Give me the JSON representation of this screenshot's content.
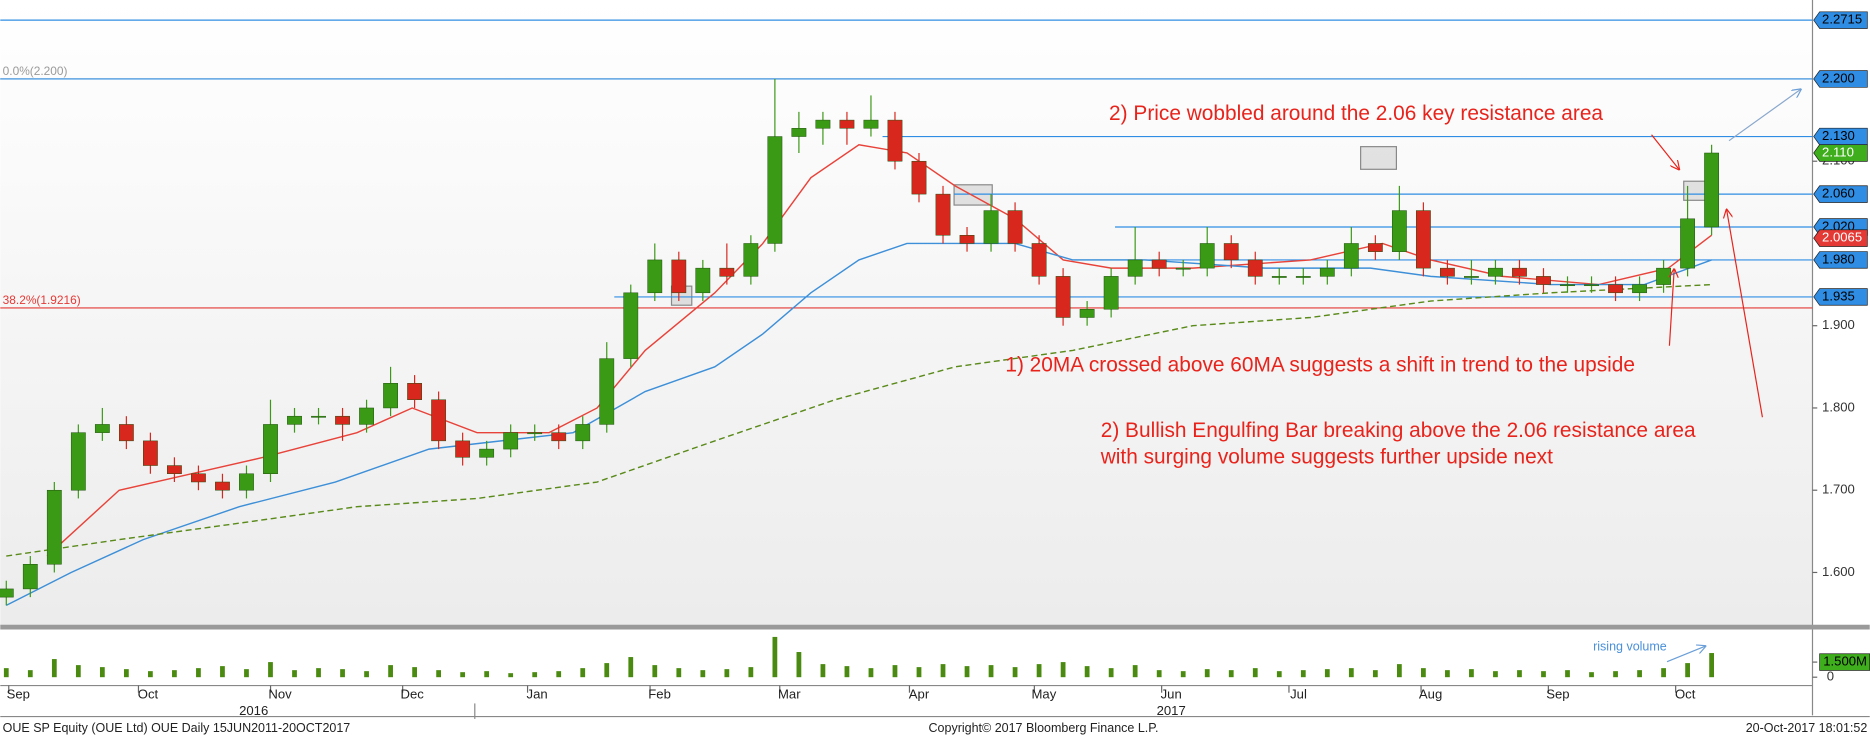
{
  "chart_data": {
    "type": "candlestick",
    "footer_left": "OUE SP Equity (OUE Ltd) OUE  Daily 15JUN2011-20OCT2017",
    "footer_center": "Copyright© 2017 Bloomberg Finance L.P.",
    "footer_right": "20-Oct-2017 18:01:52",
    "xlim": [
      -0.25,
      75.2
    ],
    "ylim": [
      1.535,
      2.296
    ],
    "xticks": [
      {
        "value": 0.5,
        "label": "Sep"
      },
      {
        "value": 5.9,
        "label": "Oct"
      },
      {
        "value": 11.4,
        "label": "Nov"
      },
      {
        "value": 16.9,
        "label": "Dec"
      },
      {
        "value": 22.1,
        "label": "Jan"
      },
      {
        "value": 27.2,
        "label": "Feb"
      },
      {
        "value": 32.6,
        "label": "Mar"
      },
      {
        "value": 38.0,
        "label": "Apr"
      },
      {
        "value": 43.2,
        "label": "May"
      },
      {
        "value": 48.5,
        "label": "Jun"
      },
      {
        "value": 53.8,
        "label": "Jul"
      },
      {
        "value": 59.3,
        "label": "Aug"
      },
      {
        "value": 64.6,
        "label": "Sep"
      },
      {
        "value": 69.9,
        "label": "Oct"
      }
    ],
    "year_ticks": [
      {
        "value": 10.3,
        "label": "2016"
      },
      {
        "value": 48.5,
        "label": "2017"
      }
    ],
    "yticks": [
      {
        "value": 1.6,
        "label": "1.600"
      },
      {
        "value": 1.7,
        "label": "1.700"
      },
      {
        "value": 1.8,
        "label": "1.800"
      },
      {
        "value": 1.9,
        "label": "1.900"
      },
      {
        "value": 2.1,
        "label": "2.100"
      }
    ],
    "up_color": "#3a9a16",
    "down_color": "#d8281e",
    "open": [
      1.57,
      1.58,
      1.61,
      1.7,
      1.77,
      1.78,
      1.76,
      1.73,
      1.72,
      1.71,
      1.7,
      1.72,
      1.78,
      1.79,
      1.79,
      1.78,
      1.8,
      1.83,
      1.81,
      1.76,
      1.74,
      1.75,
      1.77,
      1.77,
      1.76,
      1.78,
      1.86,
      1.94,
      1.98,
      1.94,
      1.97,
      1.96,
      2.0,
      2.13,
      2.14,
      2.15,
      2.14,
      2.15,
      2.1,
      2.06,
      2.01,
      2.0,
      2.04,
      2.0,
      1.96,
      1.91,
      1.92,
      1.96,
      1.98,
      1.97,
      1.97,
      2.0,
      1.98,
      1.96,
      1.96,
      1.96,
      1.97,
      2.0,
      1.99,
      2.04,
      1.97,
      1.96,
      1.96,
      1.97,
      1.96,
      1.95,
      1.95,
      1.95,
      1.94,
      1.95,
      1.97,
      2.02
    ],
    "high": [
      1.59,
      1.62,
      1.71,
      1.78,
      1.8,
      1.79,
      1.77,
      1.74,
      1.73,
      1.72,
      1.73,
      1.81,
      1.8,
      1.8,
      1.8,
      1.81,
      1.85,
      1.84,
      1.82,
      1.77,
      1.76,
      1.78,
      1.78,
      1.78,
      1.79,
      1.88,
      1.95,
      2.0,
      1.99,
      1.98,
      2.0,
      2.01,
      2.2,
      2.16,
      2.16,
      2.16,
      2.18,
      2.16,
      2.11,
      2.07,
      2.02,
      2.06,
      2.05,
      2.01,
      1.97,
      1.93,
      1.97,
      2.02,
      1.99,
      1.98,
      2.02,
      2.01,
      1.99,
      1.97,
      1.97,
      1.98,
      2.02,
      2.01,
      2.07,
      2.05,
      1.98,
      1.98,
      1.98,
      1.98,
      1.97,
      1.96,
      1.96,
      1.96,
      1.96,
      1.98,
      2.07,
      2.12
    ],
    "low": [
      1.56,
      1.57,
      1.6,
      1.69,
      1.76,
      1.75,
      1.72,
      1.71,
      1.7,
      1.69,
      1.69,
      1.71,
      1.77,
      1.78,
      1.76,
      1.77,
      1.79,
      1.8,
      1.75,
      1.73,
      1.73,
      1.74,
      1.76,
      1.75,
      1.75,
      1.77,
      1.85,
      1.93,
      1.93,
      1.93,
      1.95,
      1.95,
      1.99,
      2.11,
      2.12,
      2.12,
      2.13,
      2.09,
      2.05,
      2.0,
      1.99,
      1.99,
      1.99,
      1.95,
      1.9,
      1.9,
      1.91,
      1.95,
      1.96,
      1.96,
      1.96,
      1.97,
      1.95,
      1.95,
      1.95,
      1.95,
      1.96,
      1.98,
      1.98,
      1.96,
      1.95,
      1.95,
      1.95,
      1.95,
      1.94,
      1.94,
      1.94,
      1.93,
      1.93,
      1.94,
      1.96,
      2.01
    ],
    "close": [
      1.58,
      1.61,
      1.7,
      1.77,
      1.78,
      1.76,
      1.73,
      1.72,
      1.71,
      1.7,
      1.72,
      1.78,
      1.79,
      1.79,
      1.78,
      1.8,
      1.83,
      1.81,
      1.76,
      1.74,
      1.75,
      1.77,
      1.77,
      1.76,
      1.78,
      1.86,
      1.94,
      1.98,
      1.94,
      1.97,
      1.96,
      2.0,
      2.13,
      2.14,
      2.15,
      2.14,
      2.15,
      2.1,
      2.06,
      2.01,
      2.0,
      2.04,
      2.0,
      1.96,
      1.91,
      1.92,
      1.96,
      1.98,
      1.97,
      1.97,
      2.0,
      1.98,
      1.96,
      1.96,
      1.96,
      1.97,
      2.0,
      1.99,
      2.04,
      1.97,
      1.96,
      1.96,
      1.97,
      1.96,
      1.95,
      1.95,
      1.95,
      1.94,
      1.95,
      1.97,
      2.03,
      2.11
    ],
    "volume": [
      900000,
      700000,
      1800000,
      1200000,
      1000000,
      800000,
      600000,
      700000,
      900000,
      1100000,
      800000,
      1500000,
      700000,
      900000,
      800000,
      600000,
      1200000,
      1000000,
      700000,
      500000,
      600000,
      400000,
      500000,
      600000,
      900000,
      1400000,
      2000000,
      1200000,
      900000,
      700000,
      800000,
      1000000,
      4000000,
      2500000,
      1300000,
      1100000,
      900000,
      1200000,
      1000000,
      1300000,
      1100000,
      1200000,
      1000000,
      1300000,
      1500000,
      1100000,
      900000,
      1200000,
      700000,
      600000,
      800000,
      700000,
      900000,
      600000,
      700000,
      800000,
      900000,
      700000,
      1300000,
      900000,
      700000,
      800000,
      600000,
      700000,
      600000,
      700000,
      500000,
      600000,
      700000,
      900000,
      1400000,
      2400000
    ],
    "volume_color": "#4a8a10",
    "volume_ylim": [
      0,
      4500000
    ],
    "volume_yticks": [
      0,
      {
        "value": 1500000,
        "label": "1.500M"
      }
    ],
    "ma": [
      {
        "color": "#e8433a",
        "dash": false,
        "x": [
          1.7,
          4.7,
          7.7,
          10.7,
          14.6,
          16.9,
          19.6,
          22.6,
          24.6,
          26.6,
          29.5,
          31.5,
          33.5,
          35.5,
          37.5,
          39.5,
          42,
          44,
          46,
          49.4,
          54.3,
          57.3,
          59.3,
          62.3,
          66.3,
          69.2,
          71
        ],
        "values": [
          1.62,
          1.7,
          1.72,
          1.74,
          1.77,
          1.8,
          1.77,
          1.77,
          1.8,
          1.87,
          1.94,
          2.0,
          2.08,
          2.12,
          2.11,
          2.07,
          2.03,
          1.98,
          1.97,
          1.97,
          1.98,
          2.0,
          1.98,
          1.96,
          1.95,
          1.97,
          2.01
        ]
      },
      {
        "color": "#3d8fd8",
        "dash": false,
        "x": [
          0,
          2.7,
          5.7,
          9.7,
          13.7,
          17.6,
          20.6,
          23.6,
          26.6,
          29.5,
          31.5,
          33.5,
          35.5,
          37.5,
          39.5,
          42,
          44.4,
          47.4,
          52.4,
          56.8,
          59.3,
          64.3,
          68.2,
          71
        ],
        "values": [
          1.56,
          1.6,
          1.64,
          1.68,
          1.71,
          1.75,
          1.76,
          1.77,
          1.82,
          1.85,
          1.89,
          1.94,
          1.98,
          2.0,
          2.0,
          2.0,
          1.98,
          1.98,
          1.97,
          1.97,
          1.96,
          1.95,
          1.95,
          1.98
        ]
      },
      {
        "color": "#5a8a1a",
        "dash": true,
        "x": [
          0,
          4.7,
          9.7,
          14.6,
          19.6,
          24.6,
          29.5,
          34.5,
          39.5,
          44.4,
          49.4,
          54.3,
          59.3,
          64.3,
          71
        ],
        "values": [
          1.62,
          1.64,
          1.66,
          1.68,
          1.69,
          1.71,
          1.76,
          1.81,
          1.85,
          1.87,
          1.9,
          1.91,
          1.93,
          1.94,
          1.95
        ]
      }
    ],
    "levels": [
      {
        "value": 2.2715,
        "label": "2.2715",
        "color": "#2f8de4"
      },
      {
        "value": 2.2,
        "label": "2.200",
        "color": "#2f8de4"
      },
      {
        "value": 2.13,
        "label": "2.130",
        "color": "#2f8de4"
      },
      {
        "value": 2.06,
        "label": "2.060",
        "color": "#2f8de4"
      },
      {
        "value": 2.02,
        "label": "2.020",
        "color": "#2f8de4"
      },
      {
        "value": 1.98,
        "label": "1.980",
        "color": "#2f8de4"
      },
      {
        "value": 1.935,
        "label": "1.935",
        "color": "#2f8de4"
      }
    ],
    "price_tags": [
      {
        "value": 2.11,
        "label": "2.110",
        "color": "#3fae1c"
      },
      {
        "value": 2.0065,
        "label": "2.0065",
        "color": "#e53935"
      }
    ],
    "fib": [
      {
        "value": 2.2,
        "label": "0.0%(2.200)",
        "color": "#9a9a9a"
      },
      {
        "value": 1.9216,
        "label": "38.2%(1.9216)",
        "color": "#e53935"
      }
    ],
    "annotations": [
      "2) Price wobbled around the 2.06 key resistance area",
      "1) 20MA crossed above 60MA suggests a shift in trend to the upside",
      "2) Bullish Engulfing Bar breaking above the 2.06 resistance area",
      "with surging volume suggests further upside next",
      "rising volume"
    ]
  }
}
